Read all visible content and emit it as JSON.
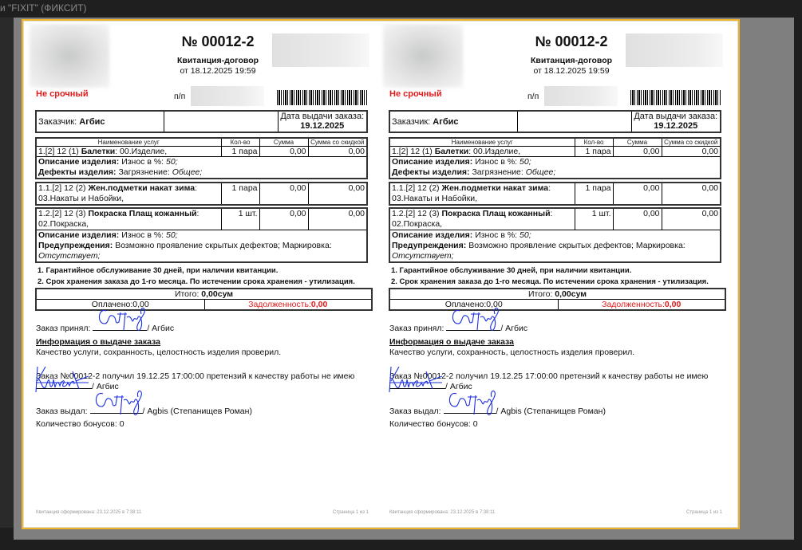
{
  "window": {
    "title_fragment": "и \"FIXIT\" (ФИКСИТ)"
  },
  "colors": {
    "accent_border": "#f0b429",
    "urgency": "#e21b1b",
    "signature": "#1a2ee0"
  },
  "receipt": {
    "number": "№ 00012-2",
    "doc_type": "Квитанция-договор",
    "date": "от 18.12.2025 19:59",
    "urgency": "Не срочный",
    "pp_label": "п/п",
    "customer_label": "Заказчик:",
    "customer": "Агбис",
    "issue_date_label": "Дата выдачи заказа:",
    "issue_date": "19.12.2025",
    "columns": [
      "Наименование услуг",
      "Кол-во",
      "Сумма",
      "Сумма со скидкой"
    ],
    "items": [
      {
        "prefix": "1.[2] 12 (1)",
        "name": "Балетки",
        "service": ": 00.Изделие,",
        "qty": "1 пара",
        "sum": "0,00",
        "discount_sum": "0,00",
        "desc_label": "Описание изделия:",
        "desc_text": "Износ в %:",
        "desc_value": "50;",
        "defects_label": "Дефекты изделия:",
        "defects_text": "Загрязнение:",
        "defects_value": "Общее;"
      },
      {
        "prefix": "1.1.[2] 12 (2)",
        "name": "Жен.подметки накат зима",
        "service": ":",
        "service2": "03.Накаты и Набойки,",
        "qty": "1 пара",
        "sum": "0,00",
        "discount_sum": "0,00"
      },
      {
        "prefix": "1.2.[2] 12 (3)",
        "name": "Покраска Плащ кожанный",
        "service": ":",
        "service2": "02.Покраска,",
        "qty": "1 шт.",
        "sum": "0,00",
        "discount_sum": "0,00",
        "desc_label": "Описание изделия:",
        "desc_text": "Износ в %:",
        "desc_value": "50;",
        "warn_label": "Предупреждения:",
        "warn_text": "Возможно проявление скрытых дефектов; Маркировка:",
        "warn_value": "Отсутствует;"
      }
    ],
    "notes": [
      "1. Гарантийное обслуживание 30 дней, при наличии квитанции.",
      "2. Срок хранения заказа до 1-го месяца. По истечении срока хранения - утилизация."
    ],
    "total_label": "Итого:",
    "total": "0,00сум",
    "paid": "Оплачено:0,00",
    "debt_label": "Задолженность:",
    "debt": "0,00",
    "accepted_label": "Заказ принял:",
    "accepted_by": "/ Агбис",
    "issue_info_title": "Информация о выдаче заказа",
    "quality_check": "Качество услуги, сохранность, целостность изделия проверил.",
    "received_text": "Заказ №00012-2 получил 19.12.25 17:00:00 претензий к качеству работы не имею",
    "received_by": "/ Агбис",
    "issued_label": "Заказ выдал:",
    "issued_by": "/ Agbis (Степанищев Роман)",
    "bonus": "Количество бонусов: 0",
    "generated": "Квитанция сформирована: 23.12.2025 в 7:38:11",
    "page": "Страница 1 из 1"
  }
}
